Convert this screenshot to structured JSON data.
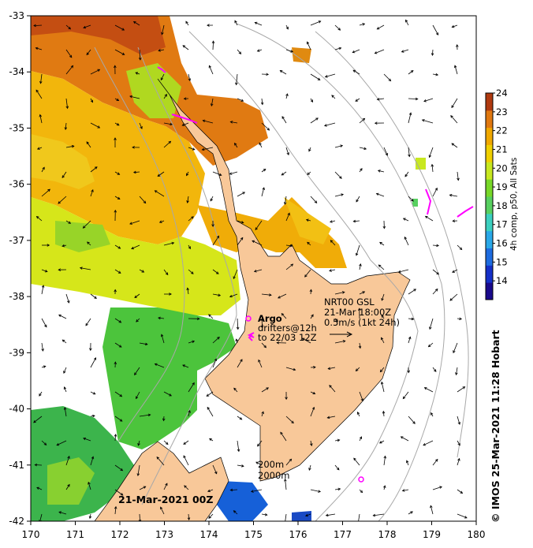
{
  "chart_data": {
    "type": "map",
    "lon_range": [
      170,
      180
    ],
    "lat_range": [
      -42,
      -33
    ],
    "x_ticks": [
      "170",
      "171",
      "172",
      "173",
      "174",
      "175",
      "176",
      "177",
      "178",
      "179",
      "180"
    ],
    "y_ticks": [
      "-33",
      "-34",
      "-35",
      "-36",
      "-37",
      "-38",
      "-39",
      "-40",
      "-41",
      "-42"
    ],
    "colorbar": {
      "label": "4h comp, p50, All Sats",
      "min": 13,
      "max": 24,
      "ticks": [
        "14",
        "15",
        "16",
        "17",
        "18",
        "19",
        "20",
        "21",
        "22",
        "23",
        "24"
      ],
      "colors": [
        "#1a0a8c",
        "#1530c8",
        "#1e6ce0",
        "#2aa8e8",
        "#3cd0c0",
        "#58d060",
        "#78d828",
        "#c8e820",
        "#f0d000",
        "#f0a800",
        "#e07810",
        "#b03a10"
      ]
    },
    "annotations": {
      "argo_title": "Argo",
      "argo_line1": "drifters@12h",
      "argo_line2": "to 22/03 12Z",
      "current_line1": "NRT00 GSL",
      "current_line2": "21-Mar 18:00Z",
      "current_line3": "0.5m/s (1kt 24h)",
      "isobath_1": "200m",
      "isobath_2": "2000m",
      "date": "21-Mar-2021 00Z",
      "credit": "© IMOS 25-Mar-2021 11:28 Hobart"
    }
  }
}
